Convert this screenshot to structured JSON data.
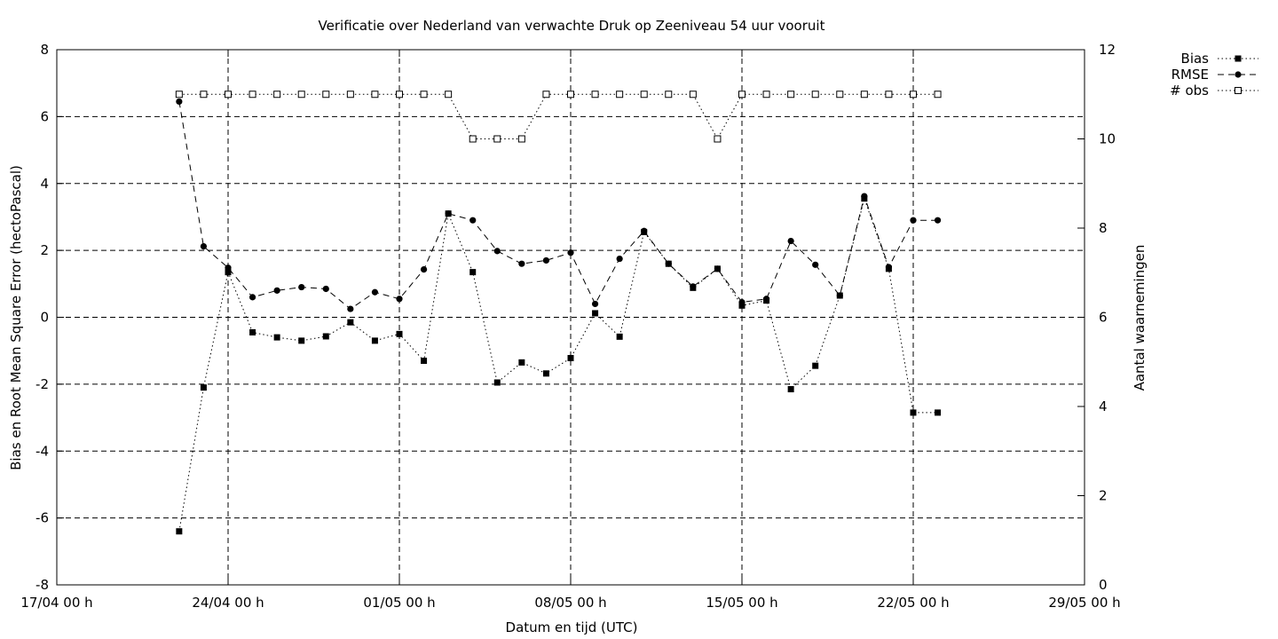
{
  "chart_data": {
    "type": "line",
    "title": "Verificatie over Nederland van verwachte Druk op Zeeniveau 54 uur vooruit",
    "xlabel": "Datum en tijd (UTC)",
    "ylabel": "Bias en Root Mean Square Error (hectoPascal)",
    "y2label": "Aantal waarnemingen",
    "xlim": [
      "2013-04-17 00:00",
      "2013-05-29 00:00"
    ],
    "ylim": [
      -8,
      8
    ],
    "y2lim": [
      0,
      12
    ],
    "xticks": [
      "17/04 00 h",
      "24/04 00 h",
      "01/05 00 h",
      "08/05 00 h",
      "15/05 00 h",
      "22/05 00 h",
      "29/05 00 h"
    ],
    "yticks": [
      "-8",
      "-6",
      "-4",
      "-2",
      "0",
      "2",
      "4",
      "6",
      "8"
    ],
    "y2ticks": [
      "0",
      "2",
      "4",
      "6",
      "8",
      "10",
      "12"
    ],
    "grid": true,
    "legend_position": "top-right-outside",
    "x": [
      "2013-04-22 00:00",
      "2013-04-23 00:00",
      "2013-04-24 00:00",
      "2013-04-25 00:00",
      "2013-04-26 00:00",
      "2013-04-27 00:00",
      "2013-04-28 00:00",
      "2013-04-29 00:00",
      "2013-04-30 00:00",
      "2013-05-01 00:00",
      "2013-05-02 00:00",
      "2013-05-03 00:00",
      "2013-05-04 00:00",
      "2013-05-05 00:00",
      "2013-05-06 00:00",
      "2013-05-07 00:00",
      "2013-05-08 00:00",
      "2013-05-09 00:00",
      "2013-05-10 00:00",
      "2013-05-11 00:00",
      "2013-05-12 00:00",
      "2013-05-13 00:00",
      "2013-05-14 00:00",
      "2013-05-15 00:00",
      "2013-05-16 00:00",
      "2013-05-17 00:00",
      "2013-05-18 00:00",
      "2013-05-19 00:00",
      "2013-05-20 00:00",
      "2013-05-21 00:00",
      "2013-05-22 00:00",
      "2013-05-23 00:00"
    ],
    "series": [
      {
        "name": "Bias",
        "axis": "y",
        "marker": "filled-square",
        "dash": "dotted",
        "values": [
          -6.4,
          -2.1,
          1.35,
          -0.45,
          -0.6,
          -0.7,
          -0.57,
          -0.15,
          -0.7,
          -0.5,
          -1.3,
          3.1,
          1.35,
          -1.95,
          -1.35,
          -1.68,
          -1.22,
          0.12,
          -0.58,
          2.55,
          1.6,
          0.88,
          1.45,
          0.35,
          0.5,
          -2.15,
          -1.45,
          0.65,
          3.55,
          1.45,
          -2.85,
          -2.85
        ]
      },
      {
        "name": "RMSE",
        "axis": "y",
        "marker": "filled-circle",
        "dash": "dashed",
        "values": [
          6.45,
          2.12,
          1.48,
          0.6,
          0.8,
          0.9,
          0.85,
          0.25,
          0.75,
          0.55,
          1.43,
          3.1,
          2.9,
          1.98,
          1.6,
          1.7,
          1.93,
          0.4,
          1.75,
          2.58,
          1.6,
          0.92,
          1.45,
          0.45,
          0.55,
          2.28,
          1.57,
          0.65,
          3.62,
          1.5,
          2.9,
          2.9
        ]
      },
      {
        "name": "# obs",
        "axis": "y2",
        "marker": "open-square",
        "dash": "dotted",
        "values": [
          11,
          11,
          11,
          11,
          11,
          11,
          11,
          11,
          11,
          11,
          11,
          11,
          10,
          10,
          10,
          11,
          11,
          11,
          11,
          11,
          11,
          11,
          10,
          11,
          11,
          11,
          11,
          11,
          11,
          11,
          11,
          11
        ]
      }
    ]
  }
}
